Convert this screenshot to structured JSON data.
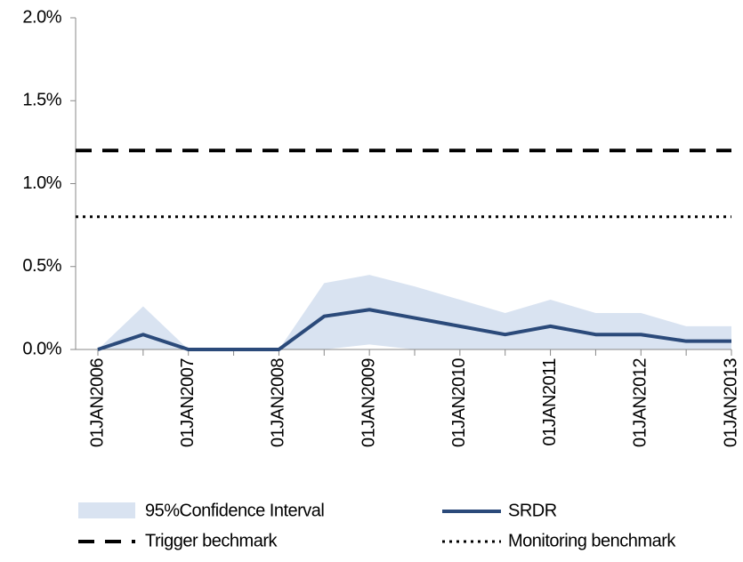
{
  "chart_data": {
    "type": "line",
    "categories": [
      "01JAN2006",
      null,
      "01JAN2007",
      null,
      "01JAN2008",
      null,
      "01JAN2009",
      null,
      "01JAN2010",
      null,
      "01JAN2011",
      null,
      "01JAN2012",
      null,
      "01JAN2013"
    ],
    "band": {
      "name": "95%Confidence Interval",
      "color": "#d9e3f1",
      "upper": [
        0,
        0.26,
        0,
        0,
        0,
        0.4,
        0.45,
        0.38,
        0.3,
        0.22,
        0.3,
        0.22,
        0.22,
        0.14,
        0.14
      ],
      "lower": [
        0,
        0,
        0,
        0,
        0,
        0,
        0.03,
        0,
        0,
        0,
        0,
        0,
        0,
        0,
        0
      ]
    },
    "series": [
      {
        "name": "SRDR",
        "color": "#2b4a7a",
        "values": [
          0,
          0.09,
          0,
          0,
          0,
          0.2,
          0.24,
          0.19,
          0.14,
          0.09,
          0.14,
          0.09,
          0.09,
          0.05,
          0.05
        ]
      }
    ],
    "reference_lines": [
      {
        "name": "Trigger bechmark",
        "value": 1.2,
        "style": "dashed",
        "color": "#000000"
      },
      {
        "name": "Monitoring benchmark",
        "value": 0.8,
        "style": "dotted",
        "color": "#000000"
      }
    ],
    "ylim": [
      0,
      2.0
    ],
    "yticks": [
      {
        "value": 0,
        "label": "0.0%"
      },
      {
        "value": 0.5,
        "label": "0.5%"
      },
      {
        "value": 1.0,
        "label": "1.0%"
      },
      {
        "value": 1.5,
        "label": "1.5%"
      },
      {
        "value": 2.0,
        "label": "2.0%"
      }
    ]
  }
}
